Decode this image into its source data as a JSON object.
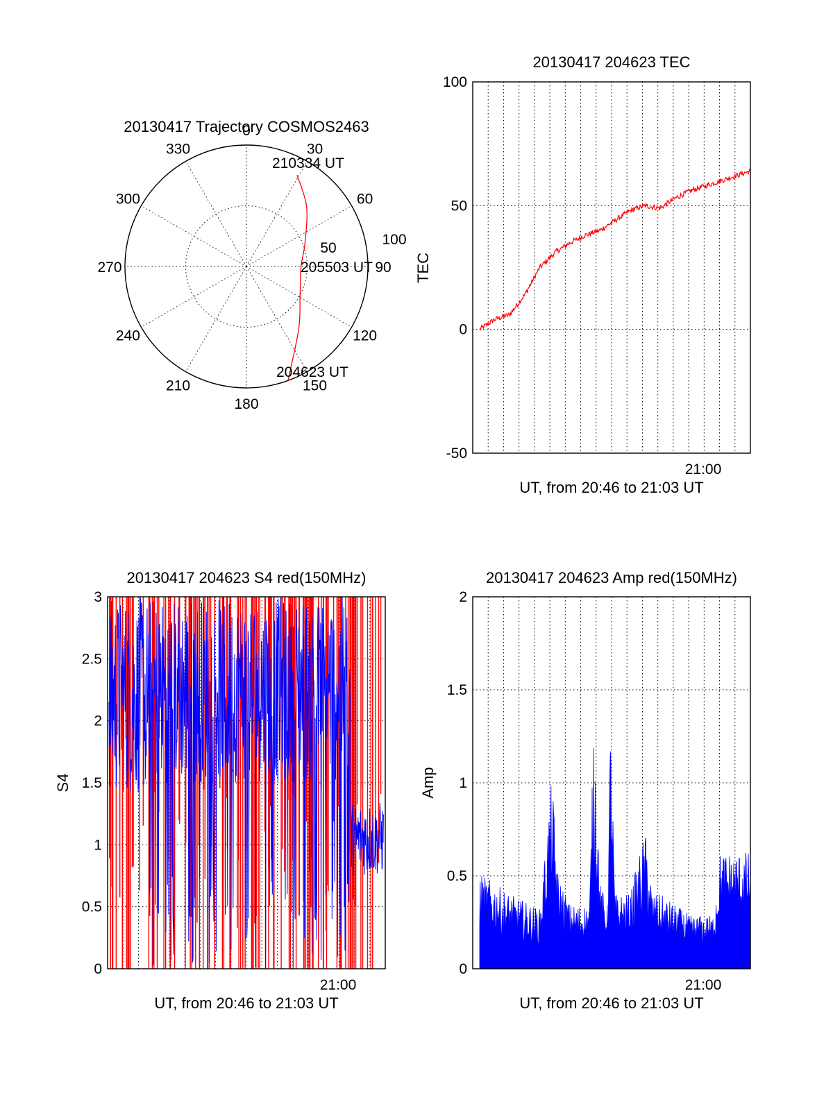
{
  "chart_data": [
    {
      "type": "polar",
      "title": "20130417 Trajectory COSMOS2463",
      "azimuth_labels": [
        "0",
        "30",
        "60",
        "90",
        "120",
        "150",
        "180",
        "210",
        "240",
        "270",
        "300",
        "330"
      ],
      "radius_labels": [
        "50",
        "100"
      ],
      "rlim": [
        0,
        100
      ],
      "colors": {
        "trajectory": "#ff0000",
        "grid": "#000000"
      },
      "trajectory": {
        "azimuth_deg": [
          160,
          140,
          118,
          90,
          68,
          45,
          29
        ],
        "radius": [
          100,
          67,
          50,
          45,
          52,
          70,
          86
        ]
      },
      "annotations": [
        "210334 UT",
        "205503 UT",
        "204623 UT"
      ]
    },
    {
      "type": "line",
      "title": "20130417 204623 TEC",
      "xlabel": "UT, from 20:46 to 21:03 UT",
      "ylabel": "TEC",
      "ylim": [
        -50,
        100
      ],
      "yticks": [
        "100",
        "50",
        "0",
        "-50"
      ],
      "xtick_label": "21:00",
      "x_minutes": [
        0,
        1,
        2,
        3,
        4,
        5,
        6,
        7,
        8,
        9,
        10,
        11,
        12,
        13,
        14,
        15,
        16,
        17,
        18
      ],
      "series": [
        {
          "color": "#ff0000",
          "values": [
            0,
            4,
            6,
            14,
            25,
            31,
            35,
            38,
            40,
            44,
            48,
            50,
            49,
            53,
            56,
            58,
            60,
            62,
            64
          ]
        }
      ],
      "grid": true
    },
    {
      "type": "line",
      "title": "20130417 204623 S4 red(150MHz)",
      "xlabel": "UT, from 20:46 to 21:03 UT",
      "ylabel": "S4",
      "ylim": [
        0,
        3
      ],
      "yticks": [
        "3",
        "2.5",
        "2",
        "1.5",
        "1",
        "0.5",
        "0"
      ],
      "xtick_label": "21:00",
      "series": [
        {
          "color": "#ff0000",
          "pattern": "dense spikes 0–3"
        },
        {
          "color": "#0000ff",
          "pattern": "dense spikes 0.7–3, ~1.0 near end"
        }
      ],
      "grid": true
    },
    {
      "type": "area",
      "title": "20130417 204623 Amp red(150MHz)",
      "xlabel": "UT, from 20:46 to 21:03 UT",
      "ylabel": "Amp",
      "ylim": [
        0,
        2
      ],
      "yticks": [
        "2",
        "1.5",
        "1",
        "0.5",
        "0"
      ],
      "xtick_label": "21:00",
      "series": [
        {
          "color": "#0000ff",
          "envelope_x_minutes": [
            0,
            2,
            4,
            4.8,
            5.2,
            6,
            7.3,
            7.6,
            8,
            8.5,
            8.7,
            9,
            10,
            11,
            11.5,
            12,
            14,
            15.5,
            16,
            18
          ],
          "envelope_values": [
            0.45,
            0.35,
            0.28,
            0.9,
            0.45,
            0.3,
            0.3,
            1.24,
            0.4,
            0.3,
            1.2,
            0.35,
            0.35,
            0.65,
            0.35,
            0.35,
            0.25,
            0.25,
            0.55,
            0.55
          ]
        }
      ],
      "grid": true
    }
  ]
}
